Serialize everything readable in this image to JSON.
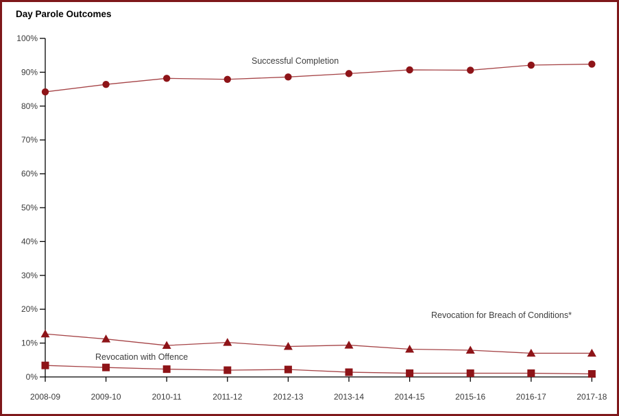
{
  "chart_data": {
    "type": "line",
    "title": "Day Parole Outcomes",
    "xlabel": "",
    "ylabel": "",
    "ylim": [
      0,
      100
    ],
    "grid": false,
    "legend_position": "inline-annotations-next-to-series",
    "categories": [
      "2008-09",
      "2009-10",
      "2010-11",
      "2011-12",
      "2012-13",
      "2013-14",
      "2014-15",
      "2015-16",
      "2016-17",
      "2017-18"
    ],
    "yticks": [
      {
        "value": 0,
        "label": "0%"
      },
      {
        "value": 10,
        "label": "10%"
      },
      {
        "value": 20,
        "label": "20%"
      },
      {
        "value": 30,
        "label": "30%"
      },
      {
        "value": 40,
        "label": "40%"
      },
      {
        "value": 50,
        "label": "50%"
      },
      {
        "value": 60,
        "label": "60%"
      },
      {
        "value": 70,
        "label": "70%"
      },
      {
        "value": 80,
        "label": "80%"
      },
      {
        "value": 90,
        "label": "90%"
      },
      {
        "value": 100,
        "label": "100%"
      }
    ],
    "series": [
      {
        "name": "Successful Completion",
        "marker": "circle",
        "values": [
          84.2,
          86.4,
          88.2,
          87.9,
          88.6,
          89.6,
          90.7,
          90.6,
          92.1,
          92.4
        ]
      },
      {
        "name": "Revocation for Breach of Conditions*",
        "marker": "triangle",
        "values": [
          12.7,
          11.2,
          9.3,
          10.2,
          9.0,
          9.4,
          8.2,
          7.9,
          7.0,
          7.0
        ]
      },
      {
        "name": "Revocation with Offence",
        "marker": "square",
        "values": [
          3.4,
          2.8,
          2.3,
          2.0,
          2.2,
          1.4,
          1.1,
          1.1,
          1.1,
          0.9
        ]
      }
    ],
    "colors": {
      "marker": "#8e1418",
      "line": "#8e1418",
      "frame_border": "#7e181b",
      "axis": "#000000",
      "tick_text": "#3a3a3a",
      "annotation_text": "#3d3d3d",
      "background": "#ffffff"
    }
  }
}
